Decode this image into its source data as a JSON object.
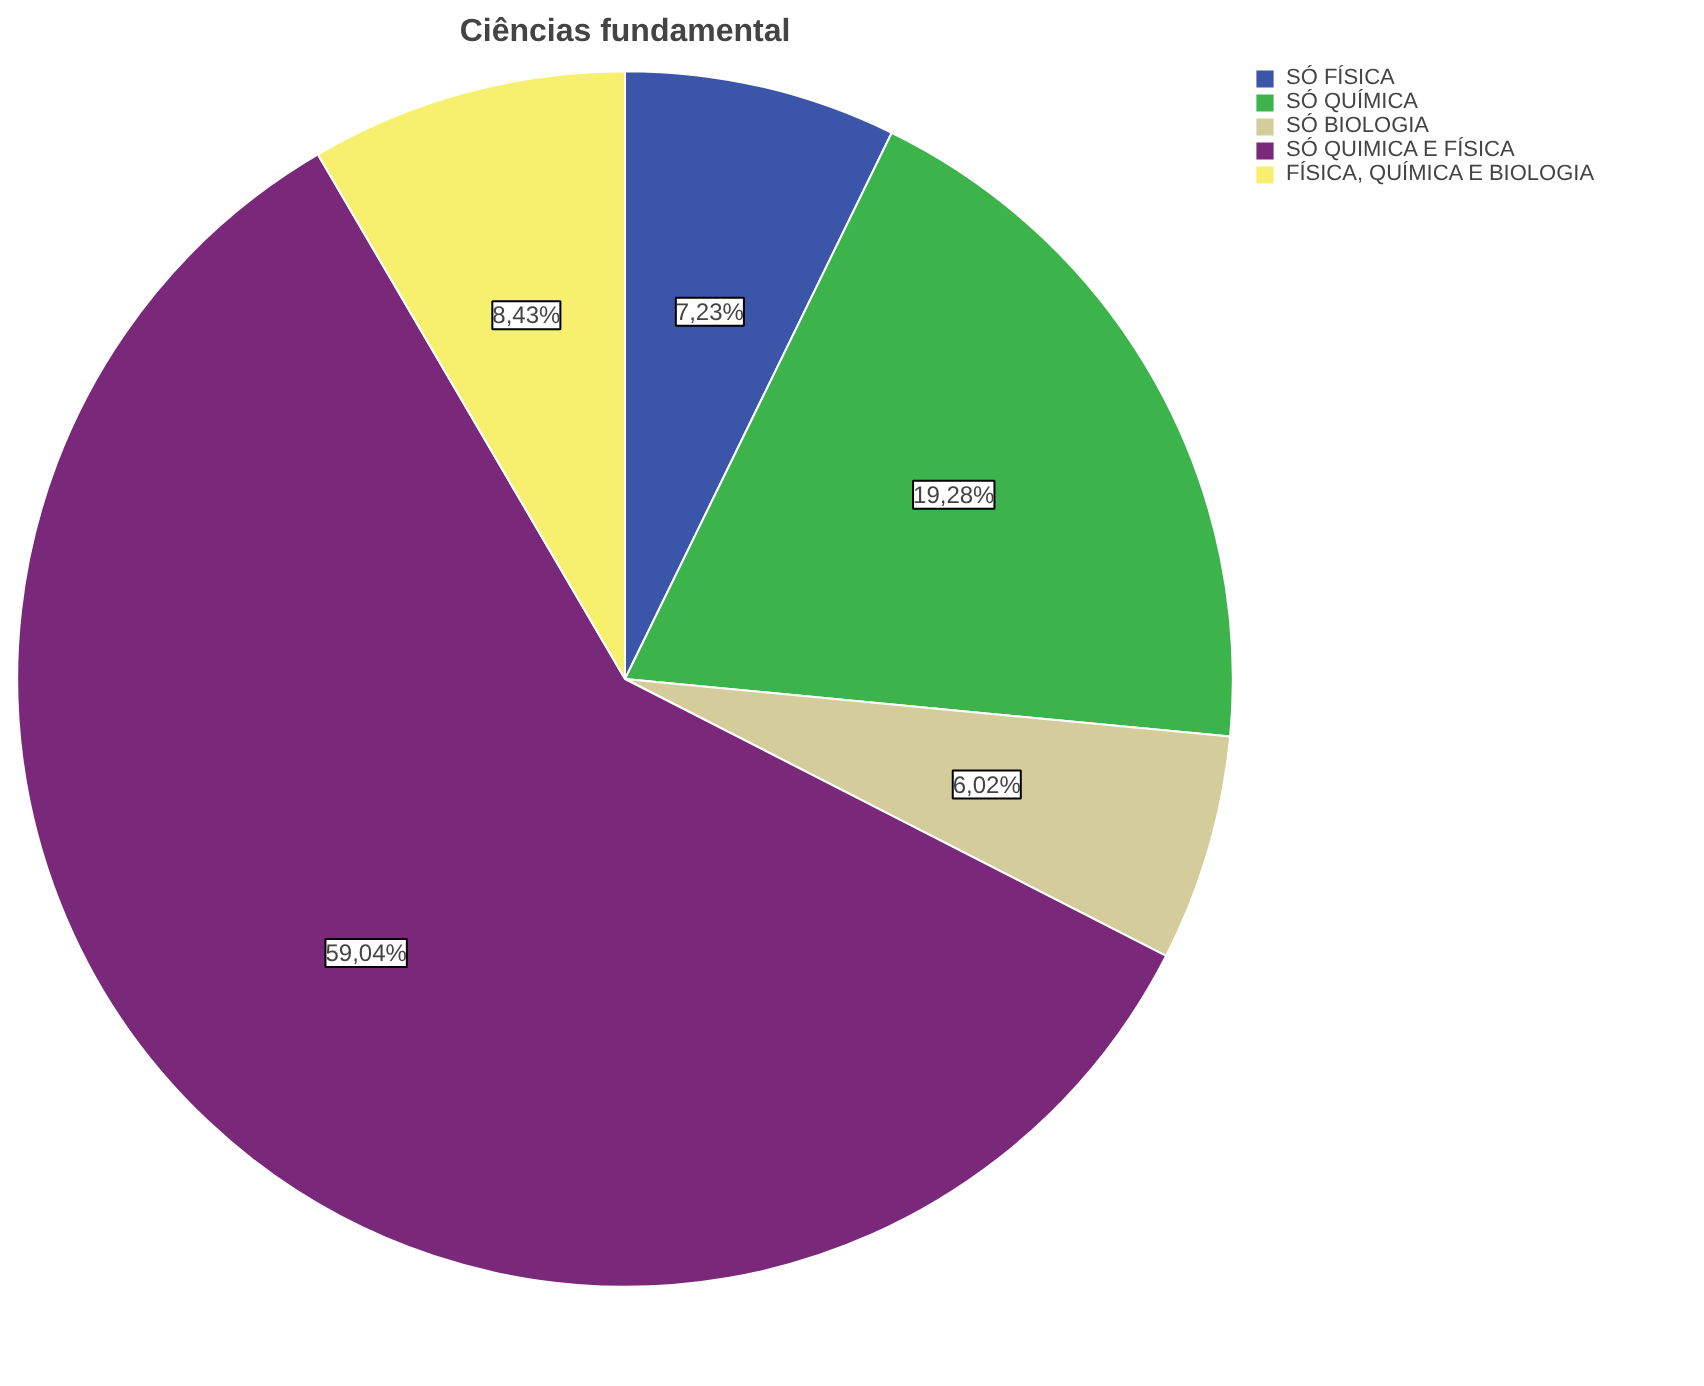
{
  "chart_data": {
    "type": "pie",
    "title": "Ciências fundamental",
    "categories": [
      "SÓ FÍSICA",
      "SÓ QUÍMICA",
      "SÓ BIOLOGIA",
      "SÓ QUIMICA E FÍSICA",
      "FÍSICA, QUÍMICA E BIOLOGIA"
    ],
    "values": [
      7.23,
      19.28,
      6.02,
      59.04,
      8.43
    ],
    "colors": [
      "#3b55a8",
      "#3cb44b",
      "#d4cd9b",
      "#7a287a",
      "#f7f06e"
    ],
    "value_labels": [
      "7,23%",
      "19,28%",
      "6,02%",
      "59,04%",
      "8,43%"
    ],
    "legend": "top right"
  }
}
